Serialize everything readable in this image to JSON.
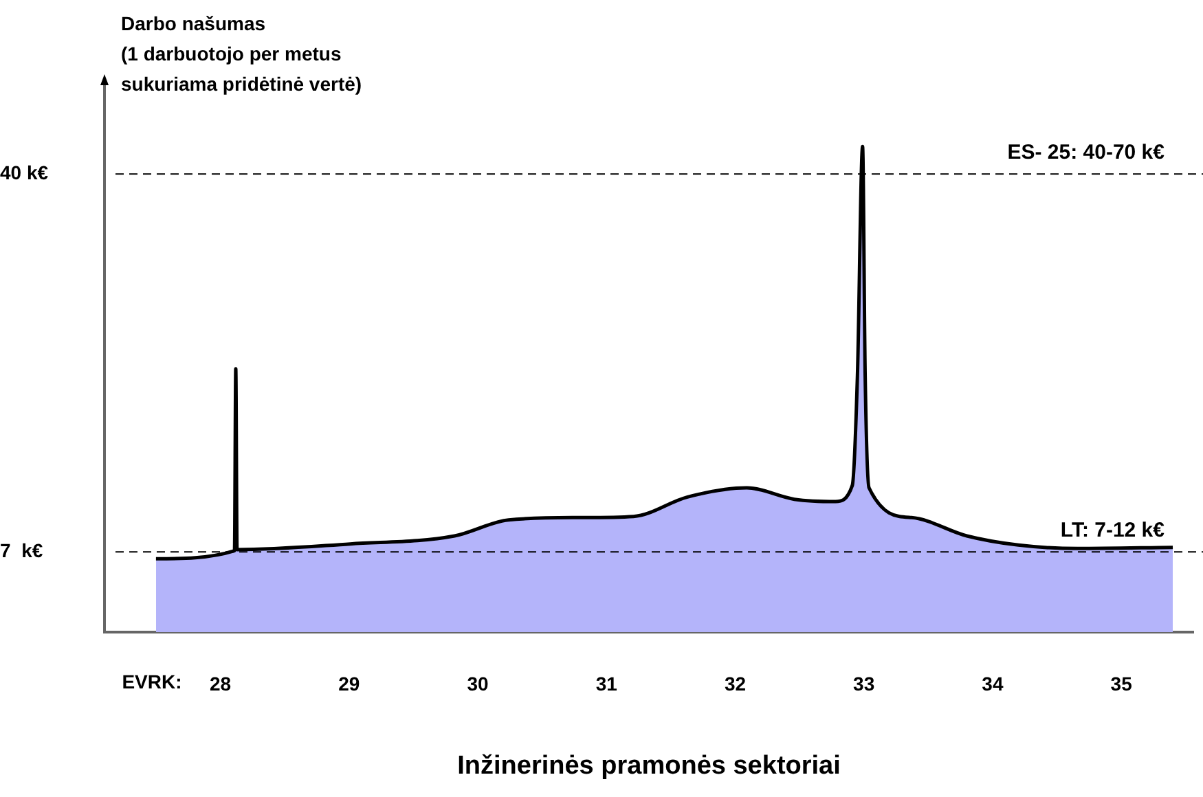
{
  "chart_data": {
    "type": "area",
    "ylabel": "Darbo našumas\n(1 darbuotojo per metus\nsukuriama pridėtinė vertė)",
    "xlabel": "Inžinerinės pramonės sektoriai",
    "annotations": [
      "EVRK:"
    ],
    "x": [
      27.5,
      28.11,
      28.12,
      28.13,
      29.01,
      29.82,
      30.24,
      30.78,
      31.21,
      31.63,
      32.09,
      32.46,
      32.78,
      32.91,
      32.95,
      32.99,
      33.01,
      33.04,
      33.37,
      33.8,
      34.2,
      34.66,
      35.4
    ],
    "values": [
      6.4,
      7.1,
      23.0,
      7.2,
      7.7,
      8.4,
      9.8,
      10.0,
      10.1,
      11.8,
      12.6,
      11.6,
      11.4,
      12.8,
      22.4,
      42.4,
      22.4,
      12.6,
      10.0,
      8.4,
      7.6,
      7.3,
      7.4
    ],
    "color": "#b4b4fa",
    "xlim": [
      27.1,
      35.56
    ],
    "xticks": [
      28,
      29,
      30,
      31,
      32,
      33,
      34,
      35
    ],
    "ylim": [
      0,
      48
    ],
    "yticks": [
      {
        "value": 7,
        "label": "7  k€"
      },
      {
        "value": 40,
        "label": "40 k€"
      }
    ],
    "ref_lines": [
      {
        "axis": "y",
        "value": 40,
        "label": "ES- 25: 40-70 k€",
        "color": "#000000",
        "line_style": "dashed"
      },
      {
        "axis": "y",
        "value": 7,
        "label": "LT: 7-12 k€",
        "color": "#000000",
        "line_style": "dashed"
      }
    ],
    "grid": false,
    "legend": false
  }
}
